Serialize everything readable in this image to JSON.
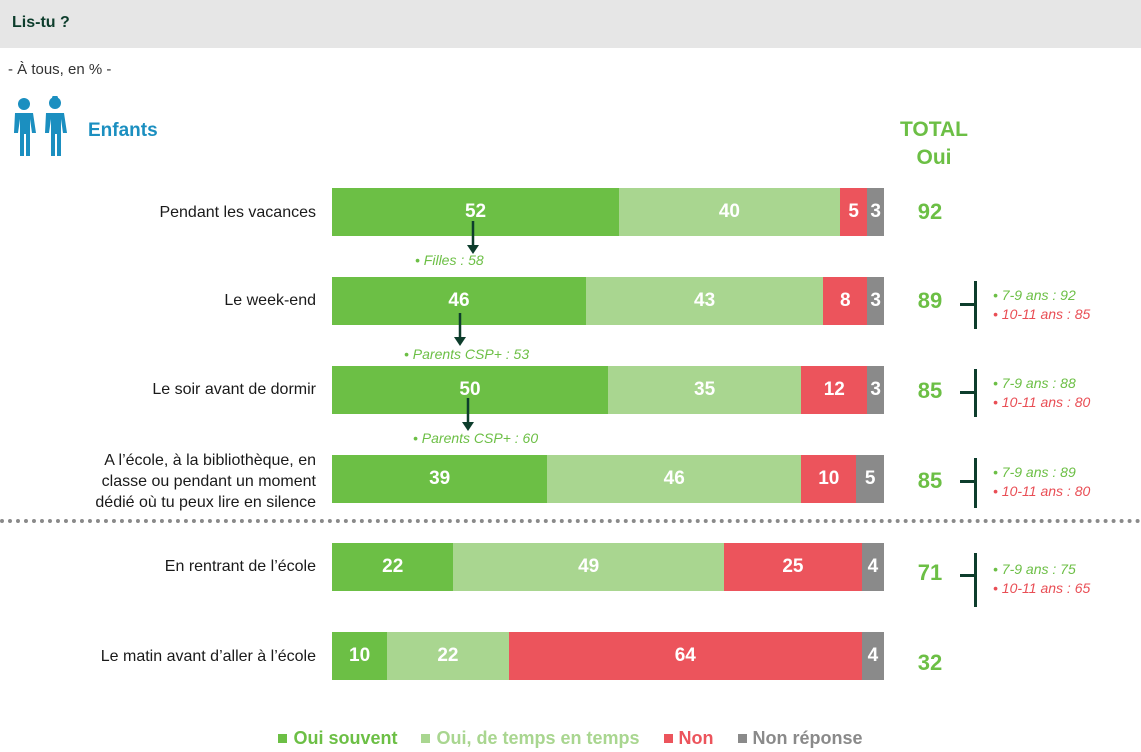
{
  "header": {
    "title": "Lis-tu ?",
    "subtitle": "- À tous, en % -",
    "group": "Enfants"
  },
  "colors": {
    "oui_souvent": "#6cbf45",
    "oui_temps": "#a9d690",
    "non": "#ec545c",
    "nr": "#8a8a8a",
    "brace": "#0d3d2c",
    "age_older": "#e94e55"
  },
  "total_header": [
    "TOTAL",
    "Oui"
  ],
  "legend": [
    "Oui souvent",
    "Oui, de temps en temps",
    "Non",
    "Non réponse"
  ],
  "chart_data": {
    "type": "bar",
    "orientation": "horizontal",
    "stacked": true,
    "unit": "%",
    "categories": [
      "Pendant les vacances",
      "Le week-end",
      "Le soir avant de dormir",
      "A l’école, à la bibliothèque, en classe ou pendant un moment dédié où tu peux lire en silence",
      "En rentrant de l’école",
      "Le matin avant d’aller à l’école"
    ],
    "series": [
      {
        "name": "Oui souvent",
        "values": [
          52,
          46,
          50,
          39,
          22,
          10
        ]
      },
      {
        "name": "Oui, de temps en temps",
        "values": [
          40,
          43,
          35,
          46,
          49,
          22
        ]
      },
      {
        "name": "Non",
        "values": [
          5,
          8,
          12,
          10,
          25,
          64
        ]
      },
      {
        "name": "Non réponse",
        "values": [
          3,
          3,
          3,
          5,
          4,
          4
        ]
      }
    ],
    "totals_oui": [
      92,
      89,
      85,
      85,
      71,
      32
    ],
    "annotations": [
      "• Filles : 58",
      "• Parents CSP+ : 53",
      "• Parents CSP+ : 60"
    ],
    "age_breakdown": [
      null,
      [
        "• 7-9 ans : 92",
        "• 10-11 ans : 85"
      ],
      [
        "• 7-9 ans : 88",
        "• 10-11 ans : 80"
      ],
      [
        "• 7-9 ans : 89",
        "• 10-11 ans : 80"
      ],
      [
        "• 7-9 ans : 75",
        "• 10-11 ans : 65"
      ],
      null
    ]
  }
}
